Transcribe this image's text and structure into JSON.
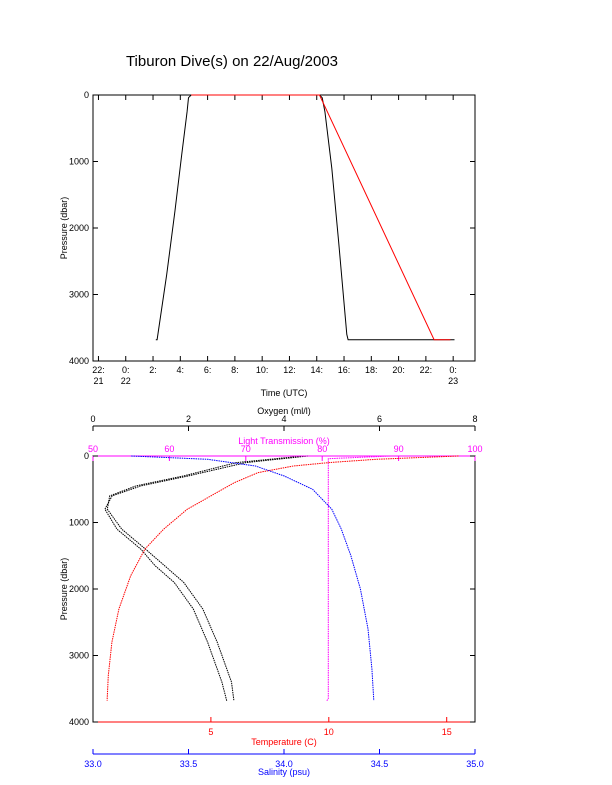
{
  "title": "Tiburon Dive(s) on 22/Aug/2003",
  "chart_data": [
    {
      "type": "line",
      "name": "dive-profile",
      "xlabel": "Time (UTC)",
      "ylabel": "Pressure (dbar)",
      "ylim": [
        4000,
        0
      ],
      "xlim": [
        -2.4,
        25.6
      ],
      "x_ticks": [
        {
          "v": -2,
          "l1": "22:",
          "l2": "21"
        },
        {
          "v": 0,
          "l1": "0:",
          "l2": "22"
        },
        {
          "v": 2,
          "l1": "2:",
          "l2": ""
        },
        {
          "v": 4,
          "l1": "4:",
          "l2": ""
        },
        {
          "v": 6,
          "l1": "6:",
          "l2": ""
        },
        {
          "v": 8,
          "l1": "8:",
          "l2": ""
        },
        {
          "v": 10,
          "l1": "10:",
          "l2": ""
        },
        {
          "v": 12,
          "l1": "12:",
          "l2": ""
        },
        {
          "v": 14,
          "l1": "14:",
          "l2": ""
        },
        {
          "v": 16,
          "l1": "16:",
          "l2": ""
        },
        {
          "v": 18,
          "l1": "18:",
          "l2": ""
        },
        {
          "v": 20,
          "l1": "20:",
          "l2": ""
        },
        {
          "v": 22,
          "l1": "22:",
          "l2": ""
        },
        {
          "v": 24,
          "l1": "0:",
          "l2": "23"
        }
      ],
      "y_ticks": [
        0,
        1000,
        2000,
        3000,
        4000
      ],
      "series": [
        {
          "color": "#000000",
          "x": [
            2.2,
            2.3,
            3.0,
            3.6,
            4.1,
            4.5,
            4.6,
            4.8,
            14.2,
            14.4,
            14.6,
            15.1,
            15.6,
            16.2,
            16.3,
            24.1
          ],
          "y": [
            3680,
            3680,
            2700,
            1750,
            900,
            250,
            40,
            0,
            0,
            40,
            250,
            1100,
            2200,
            3600,
            3680,
            3680
          ]
        },
        {
          "color": "#ff0000",
          "x": [
            4.8,
            14.2,
            22.6,
            23.8
          ],
          "y": [
            0,
            0,
            3680,
            3680
          ]
        }
      ]
    },
    {
      "type": "scatter",
      "name": "profiles",
      "ylabel": "Pressure (dbar)",
      "ylim": [
        4000,
        0
      ],
      "y_ticks": [
        0,
        1000,
        2000,
        3000,
        4000
      ],
      "axes": {
        "oxygen": {
          "label": "Oxygen (ml/l)",
          "min": 0,
          "max": 8,
          "ticks": [
            0,
            2,
            4,
            6,
            8
          ],
          "color": "#000000"
        },
        "transmission": {
          "label": "Light Transmission (%)",
          "min": 50,
          "max": 100,
          "ticks": [
            50,
            60,
            70,
            80,
            90,
            100
          ],
          "color": "#ff00ff"
        },
        "temperature": {
          "label": "Temperature (C)",
          "min": 0,
          "max": 16.2,
          "ticks": [
            5,
            10,
            15
          ],
          "color": "#ff0000"
        },
        "salinity": {
          "label": "Salinity (psu)",
          "min": 33.0,
          "max": 35.0,
          "ticks": [
            "33.0",
            "33.5",
            "34.0",
            "34.5",
            "35.0"
          ],
          "color": "#0000ff"
        }
      },
      "series": [
        {
          "axis": "oxygen",
          "color": "#000000",
          "x": [
            4.5,
            3.2,
            2.0,
            1.0,
            0.4,
            0.25,
            0.5,
            1.0,
            1.3,
            1.7,
            2.1,
            2.4,
            2.7,
            2.8
          ],
          "y": [
            0,
            100,
            300,
            450,
            600,
            800,
            1100,
            1400,
            1650,
            1900,
            2300,
            2800,
            3400,
            3680
          ]
        },
        {
          "axis": "oxygen",
          "color": "#000000",
          "x": [
            4.4,
            3.0,
            1.9,
            0.9,
            0.35,
            0.3,
            0.6,
            1.1,
            1.5,
            1.9,
            2.3,
            2.6,
            2.9,
            2.95
          ],
          "y": [
            0,
            100,
            300,
            450,
            600,
            800,
            1100,
            1400,
            1650,
            1900,
            2300,
            2800,
            3400,
            3680
          ]
        },
        {
          "axis": "transmission",
          "color": "#ff00ff",
          "x": [
            52,
            60,
            70,
            78,
            80.2,
            81.5,
            85,
            89,
            80.8,
            80.8,
            80.8,
            80.8,
            80.6
          ],
          "y": [
            0,
            0,
            0,
            0,
            0,
            0,
            0,
            0,
            40,
            1000,
            2500,
            3650,
            3680
          ]
        },
        {
          "axis": "temperature",
          "color": "#ff0000",
          "x": [
            15.5,
            12.0,
            10.0,
            8.5,
            7.0,
            6.0,
            5.0,
            4.0,
            3.0,
            2.2,
            1.6,
            1.1,
            0.8,
            0.65,
            0.6
          ],
          "y": [
            0,
            50,
            100,
            150,
            250,
            400,
            600,
            800,
            1100,
            1400,
            1800,
            2300,
            2800,
            3300,
            3680
          ]
        },
        {
          "axis": "salinity",
          "color": "#0000ff",
          "x": [
            33.2,
            33.6,
            33.85,
            34.0,
            34.15,
            34.25,
            34.3,
            34.35,
            34.4,
            34.44,
            34.46,
            34.47
          ],
          "y": [
            0,
            50,
            150,
            300,
            500,
            800,
            1100,
            1500,
            2000,
            2600,
            3200,
            3680
          ]
        }
      ]
    }
  ]
}
